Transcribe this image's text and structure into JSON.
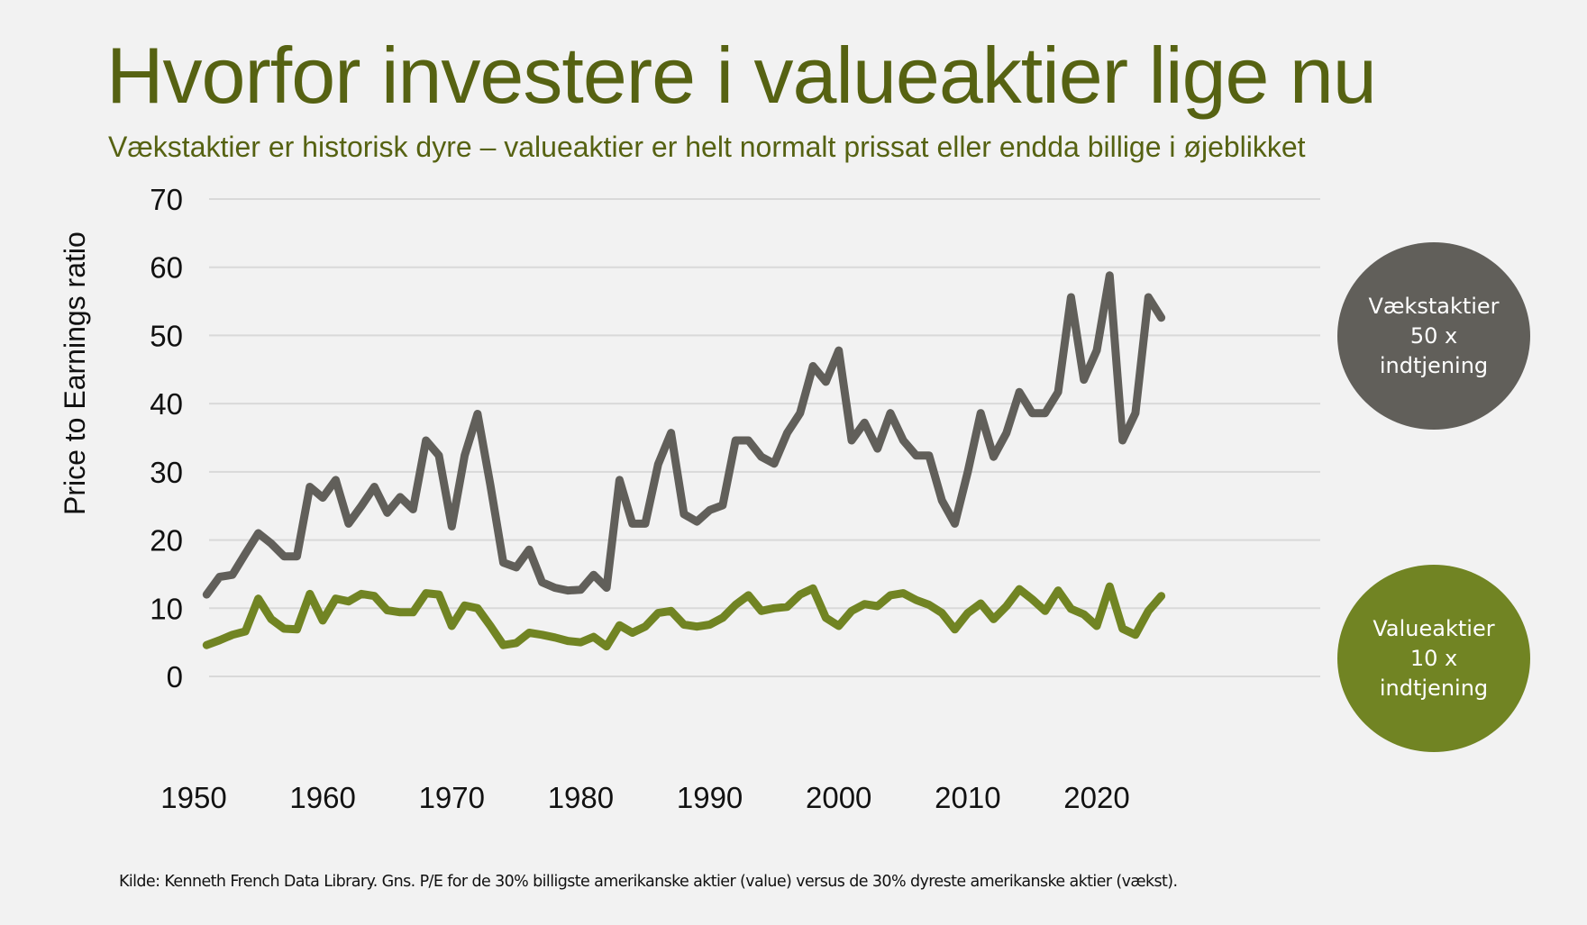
{
  "header": {
    "title": "Hvorfor investere i valueaktier lige nu",
    "subtitle": "Vækstaktier er historisk dyre – valueaktier er helt normalt prissat eller endda billige i øjeblikket"
  },
  "callouts": {
    "growth": {
      "line1": "Vækstaktier",
      "line2": "50 x",
      "line3": "indtjening",
      "color": "#615f5a"
    },
    "value": {
      "line1": "Valueaktier",
      "line2": "10 x",
      "line3": "indtjening",
      "color": "#718423"
    }
  },
  "footer": {
    "source": "Kilde: Kenneth French Data Library. Gns. P/E for de 30% billigste amerikanske aktier (value) versus de 30% dyreste amerikanske aktier (vækst)."
  },
  "chart_data": {
    "type": "line",
    "title": "Hvorfor investere i valueaktier lige nu",
    "xlabel": "",
    "ylabel": "Price to Earnings ratio",
    "xlim": [
      1950,
      2025
    ],
    "ylim": [
      0,
      70
    ],
    "x_ticks": [
      1950,
      1960,
      1970,
      1980,
      1990,
      2000,
      2010,
      2020
    ],
    "y_ticks": [
      0,
      10,
      20,
      30,
      40,
      50,
      60,
      70
    ],
    "grid": true,
    "x": [
      1951,
      1952,
      1953,
      1954,
      1955,
      1956,
      1957,
      1958,
      1959,
      1960,
      1961,
      1962,
      1963,
      1964,
      1965,
      1966,
      1967,
      1968,
      1969,
      1970,
      1971,
      1972,
      1973,
      1974,
      1975,
      1976,
      1977,
      1978,
      1979,
      1980,
      1981,
      1982,
      1983,
      1984,
      1985,
      1986,
      1987,
      1988,
      1989,
      1990,
      1991,
      1992,
      1993,
      1994,
      1995,
      1996,
      1997,
      1998,
      1999,
      2000,
      2001,
      2002,
      2003,
      2004,
      2005,
      2006,
      2007,
      2008,
      2009,
      2010,
      2011,
      2012,
      2013,
      2014,
      2015,
      2016,
      2017,
      2018,
      2019,
      2020,
      2021,
      2022,
      2023,
      2024,
      2025
    ],
    "series": [
      {
        "name": "Vækstaktier",
        "color": "#615f5a",
        "values": [
          12.0,
          14.6,
          14.9,
          18.0,
          21.0,
          19.5,
          17.6,
          17.6,
          27.8,
          26.2,
          28.8,
          22.4,
          25.0,
          27.8,
          24.0,
          26.3,
          24.5,
          34.6,
          32.4,
          22.0,
          32.4,
          38.5,
          28.0,
          16.7,
          16.0,
          18.6,
          13.8,
          13.0,
          12.6,
          12.7,
          14.9,
          13.0,
          28.8,
          22.4,
          22.4,
          31.1,
          35.7,
          23.8,
          22.7,
          24.4,
          25.1,
          34.6,
          34.6,
          32.2,
          31.2,
          35.7,
          38.6,
          45.5,
          43.2,
          47.8,
          34.6,
          37.2,
          33.4,
          38.6,
          34.6,
          32.4,
          32.4,
          25.8,
          22.4,
          30.0,
          38.6,
          32.2,
          35.7,
          41.7,
          38.6,
          38.6,
          41.7,
          55.6,
          43.5,
          47.8,
          58.8,
          34.6,
          38.6,
          55.6,
          52.6
        ]
      },
      {
        "name": "Valueaktier",
        "color": "#718423",
        "values": [
          4.6,
          5.3,
          6.1,
          6.6,
          11.4,
          8.4,
          7.0,
          6.9,
          12.1,
          8.2,
          11.4,
          11.0,
          12.1,
          11.8,
          9.7,
          9.4,
          9.4,
          12.2,
          12.0,
          7.4,
          10.4,
          10.0,
          7.4,
          4.6,
          4.9,
          6.4,
          6.1,
          5.7,
          5.2,
          5.0,
          5.8,
          4.4,
          7.5,
          6.4,
          7.3,
          9.3,
          9.6,
          7.6,
          7.3,
          7.6,
          8.6,
          10.5,
          11.9,
          9.6,
          10.0,
          10.2,
          12.0,
          12.9,
          8.6,
          7.4,
          9.6,
          10.6,
          10.3,
          11.9,
          12.2,
          11.2,
          10.5,
          9.3,
          6.9,
          9.3,
          10.7,
          8.4,
          10.3,
          12.8,
          11.3,
          9.6,
          12.6,
          9.9,
          9.1,
          7.4,
          13.2,
          7.0,
          6.1,
          9.6,
          11.8
        ]
      }
    ]
  }
}
